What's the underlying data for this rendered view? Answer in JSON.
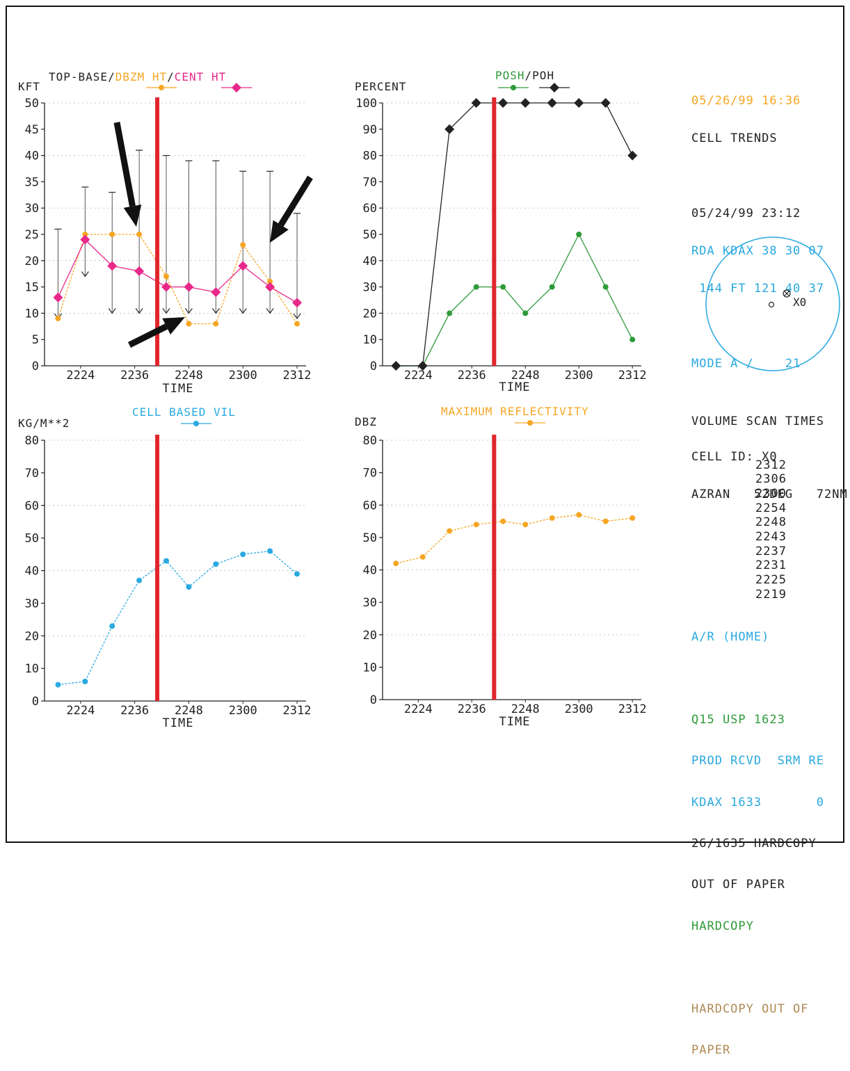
{
  "chart_data": [
    {
      "id": "cell-heights",
      "type": "line",
      "title_parts": [
        {
          "text": "TOP-BASE",
          "color": "#222222"
        },
        {
          "text": "/",
          "color": "#222222"
        },
        {
          "text": "DBZM HT",
          "color": "#f5a623"
        },
        {
          "text": "/",
          "color": "#222222"
        },
        {
          "text": "CENT HT",
          "color": "#e8298a"
        }
      ],
      "ylabel": "KFT",
      "xlabel": "TIME",
      "ylim": [
        0,
        50
      ],
      "yticks": [
        0,
        5,
        10,
        15,
        20,
        25,
        30,
        35,
        40,
        45,
        50
      ],
      "xticks": [
        "2224",
        "2236",
        "2248",
        "2300",
        "2312"
      ],
      "x": [
        "2219",
        "2225",
        "2231",
        "2237",
        "2243",
        "2248",
        "2254",
        "2300",
        "2306",
        "2312"
      ],
      "ranges": {
        "top": [
          26,
          34,
          33,
          41,
          40,
          39,
          39,
          37,
          37,
          29
        ],
        "base": [
          9,
          17,
          10,
          10,
          10,
          10,
          10,
          10,
          10,
          9
        ]
      },
      "series": [
        {
          "name": "DBZM HT",
          "color": "#f5a623",
          "marker": "circle",
          "values": [
            9,
            25,
            25,
            25,
            17,
            8,
            8,
            23,
            16,
            8
          ]
        },
        {
          "name": "CENT HT",
          "color": "#e8298a",
          "marker": "diamond",
          "values": [
            13,
            24,
            19,
            18,
            15,
            15,
            14,
            19,
            15,
            12
          ]
        }
      ]
    },
    {
      "id": "posh-poh",
      "type": "line",
      "title_parts": [
        {
          "text": "POSH",
          "color": "#2e9a3a"
        },
        {
          "text": "/",
          "color": "#222222"
        },
        {
          "text": "POH",
          "color": "#222222"
        }
      ],
      "ylabel": "PERCENT",
      "xlabel": "TIME",
      "ylim": [
        0,
        100
      ],
      "yticks": [
        0,
        10,
        20,
        30,
        40,
        50,
        60,
        70,
        80,
        90,
        100
      ],
      "xticks": [
        "2224",
        "2236",
        "2248",
        "2300",
        "2312"
      ],
      "x": [
        "2219",
        "2225",
        "2231",
        "2237",
        "2243",
        "2248",
        "2254",
        "2300",
        "2306",
        "2312"
      ],
      "series": [
        {
          "name": "POSH",
          "color": "#2e9a3a",
          "marker": "circle",
          "values": [
            0,
            0,
            20,
            30,
            30,
            20,
            30,
            50,
            30,
            10
          ]
        },
        {
          "name": "POH",
          "color": "#222222",
          "marker": "diamond",
          "values": [
            0,
            0,
            90,
            100,
            100,
            100,
            100,
            100,
            100,
            80
          ]
        }
      ]
    },
    {
      "id": "cell-vil",
      "type": "line",
      "title_parts": [
        {
          "text": "CELL BASED VIL",
          "color": "#29a9e0"
        }
      ],
      "ylabel": "KG/M**2",
      "xlabel": "TIME",
      "ylim": [
        0,
        80
      ],
      "yticks": [
        0,
        10,
        20,
        30,
        40,
        50,
        60,
        70,
        80
      ],
      "xticks": [
        "2224",
        "2236",
        "2248",
        "2300",
        "2312"
      ],
      "x": [
        "2219",
        "2225",
        "2231",
        "2237",
        "2243",
        "2248",
        "2254",
        "2300",
        "2306",
        "2312"
      ],
      "series": [
        {
          "name": "CELL BASED VIL",
          "color": "#29a9e0",
          "marker": "circle",
          "values": [
            5,
            6,
            23,
            37,
            43,
            35,
            42,
            45,
            46,
            39
          ]
        }
      ]
    },
    {
      "id": "max-refl",
      "type": "line",
      "title_parts": [
        {
          "text": "MAXIMUM REFLECTIVITY",
          "color": "#f5a623"
        }
      ],
      "ylabel": "DBZ",
      "xlabel": "TIME",
      "ylim": [
        0,
        80
      ],
      "yticks": [
        0,
        10,
        20,
        30,
        40,
        50,
        60,
        70,
        80
      ],
      "xticks": [
        "2224",
        "2236",
        "2248",
        "2300",
        "2312"
      ],
      "x": [
        "2219",
        "2225",
        "2231",
        "2237",
        "2243",
        "2248",
        "2254",
        "2300",
        "2306",
        "2312"
      ],
      "series": [
        {
          "name": "MAXIMUM REFLECTIVITY",
          "color": "#f5a623",
          "marker": "circle",
          "values": [
            42,
            44,
            52,
            54,
            55,
            54,
            56,
            57,
            55,
            56
          ]
        }
      ]
    }
  ],
  "marker_time": "2241",
  "colors": {
    "marker_line": "#e0262b",
    "arrow": "#111111",
    "grid": "#c8c8c8"
  },
  "panel": {
    "date_time": "05/26/99 16:36",
    "header": "CELL TRENDS",
    "scan_date": "05/24/99 23:12",
    "rda": "RDA KDAX 38 30 07",
    "rda_elev": " 144 FT 121 40 37",
    "mode": "MODE A /    21",
    "cell_id": "CELL ID: X0",
    "azran": "AZRAN   52DEG   72NM",
    "cell_label": "X0",
    "volume_header": "VOLUME SCAN TIMES",
    "volume_times": [
      "2312",
      "2306",
      "2300",
      "2254",
      "2248",
      "2243",
      "2237",
      "2231",
      "2225",
      "2219"
    ],
    "ar_home": "A/R (HOME)",
    "q15": "Q15 USP 1623",
    "prod_rcvd": "PROD RCVD  SRM RE",
    "kdax": "KDAX 1633       0",
    "hardcopy_msg1": "26/1635 HARDCOPY",
    "hardcopy_msg2": "OUT OF PAPER",
    "hardcopy": "HARDCOPY",
    "hardcopy_out1": "HARDCOPY OUT OF",
    "hardcopy_out2": "PAPER"
  }
}
